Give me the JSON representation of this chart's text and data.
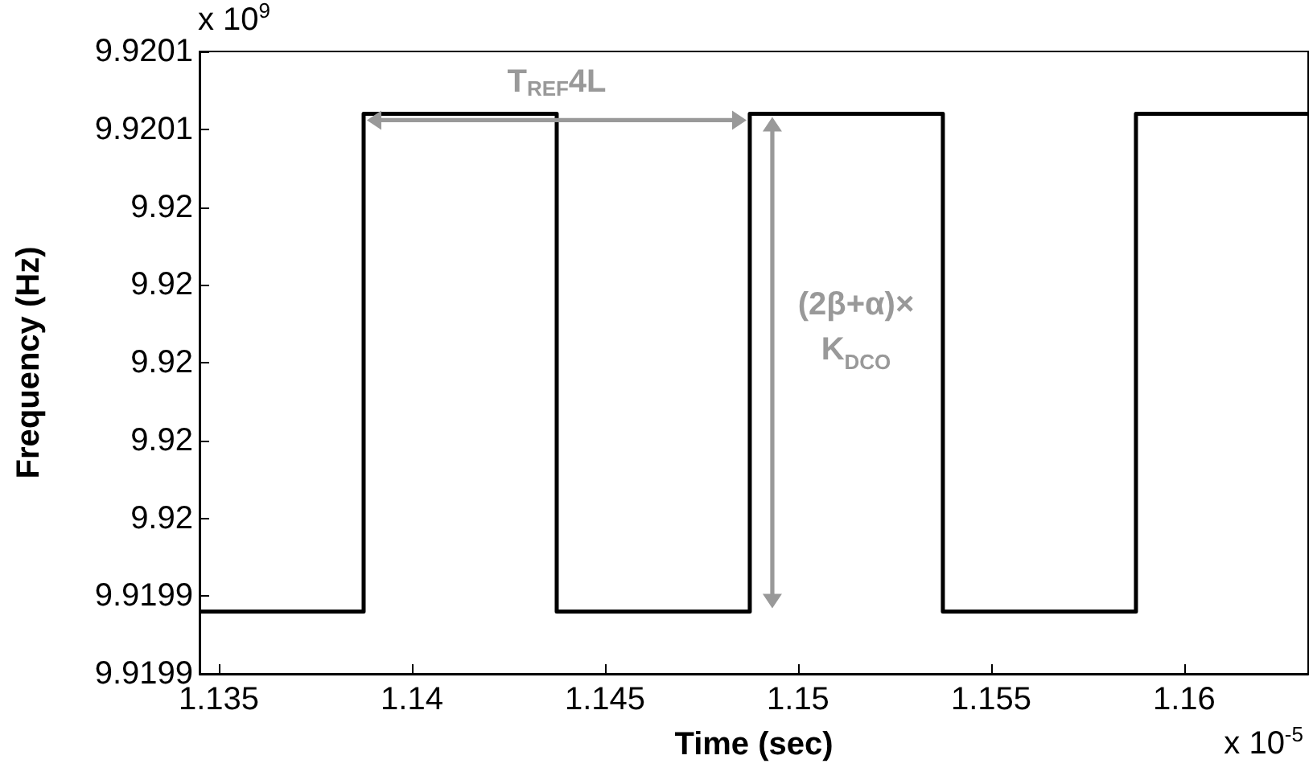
{
  "chart_data": {
    "type": "step",
    "xlabel": "Time (sec)",
    "ylabel": "Frequency (Hz)",
    "x": [
      1.1345,
      1.13875,
      1.14375,
      1.14875,
      1.15375,
      1.15875,
      1.16321
    ],
    "series": [
      {
        "color": "#000000",
        "values": [
          9.919926,
          9.920054,
          9.919926,
          9.920054,
          9.919926,
          9.920054,
          9.920054
        ]
      }
    ],
    "xlim": [
      1.1345,
      1.16321
    ],
    "xticks": [
      1.135,
      1.14,
      1.145,
      1.15,
      1.155,
      1.16
    ],
    "ylim": [
      9.91991,
      9.92007
    ],
    "yticks": [
      {
        "value": 9.91991,
        "label": "9.9199"
      },
      {
        "value": 9.91993,
        "label": "9.9199"
      },
      {
        "value": 9.91995,
        "label": "9.92"
      },
      {
        "value": 9.91997,
        "label": "9.92"
      },
      {
        "value": 9.91999,
        "label": "9.92"
      },
      {
        "value": 9.92001,
        "label": "9.92"
      },
      {
        "value": 9.92003,
        "label": "9.92"
      },
      {
        "value": 9.92005,
        "label": "9.9201"
      },
      {
        "value": 9.92007,
        "label": "9.9201"
      }
    ],
    "annotations": [
      "x 10$^{9}$",
      "x 10$^{-5}$",
      {
        "text": "T$_{REF}$4L",
        "x": 1.14375,
        "y": 9.920054
      },
      "(2β+α)×\nK$_{DCO}$"
    ],
    "grid": false,
    "marker": "none",
    "line_style": "solid"
  }
}
